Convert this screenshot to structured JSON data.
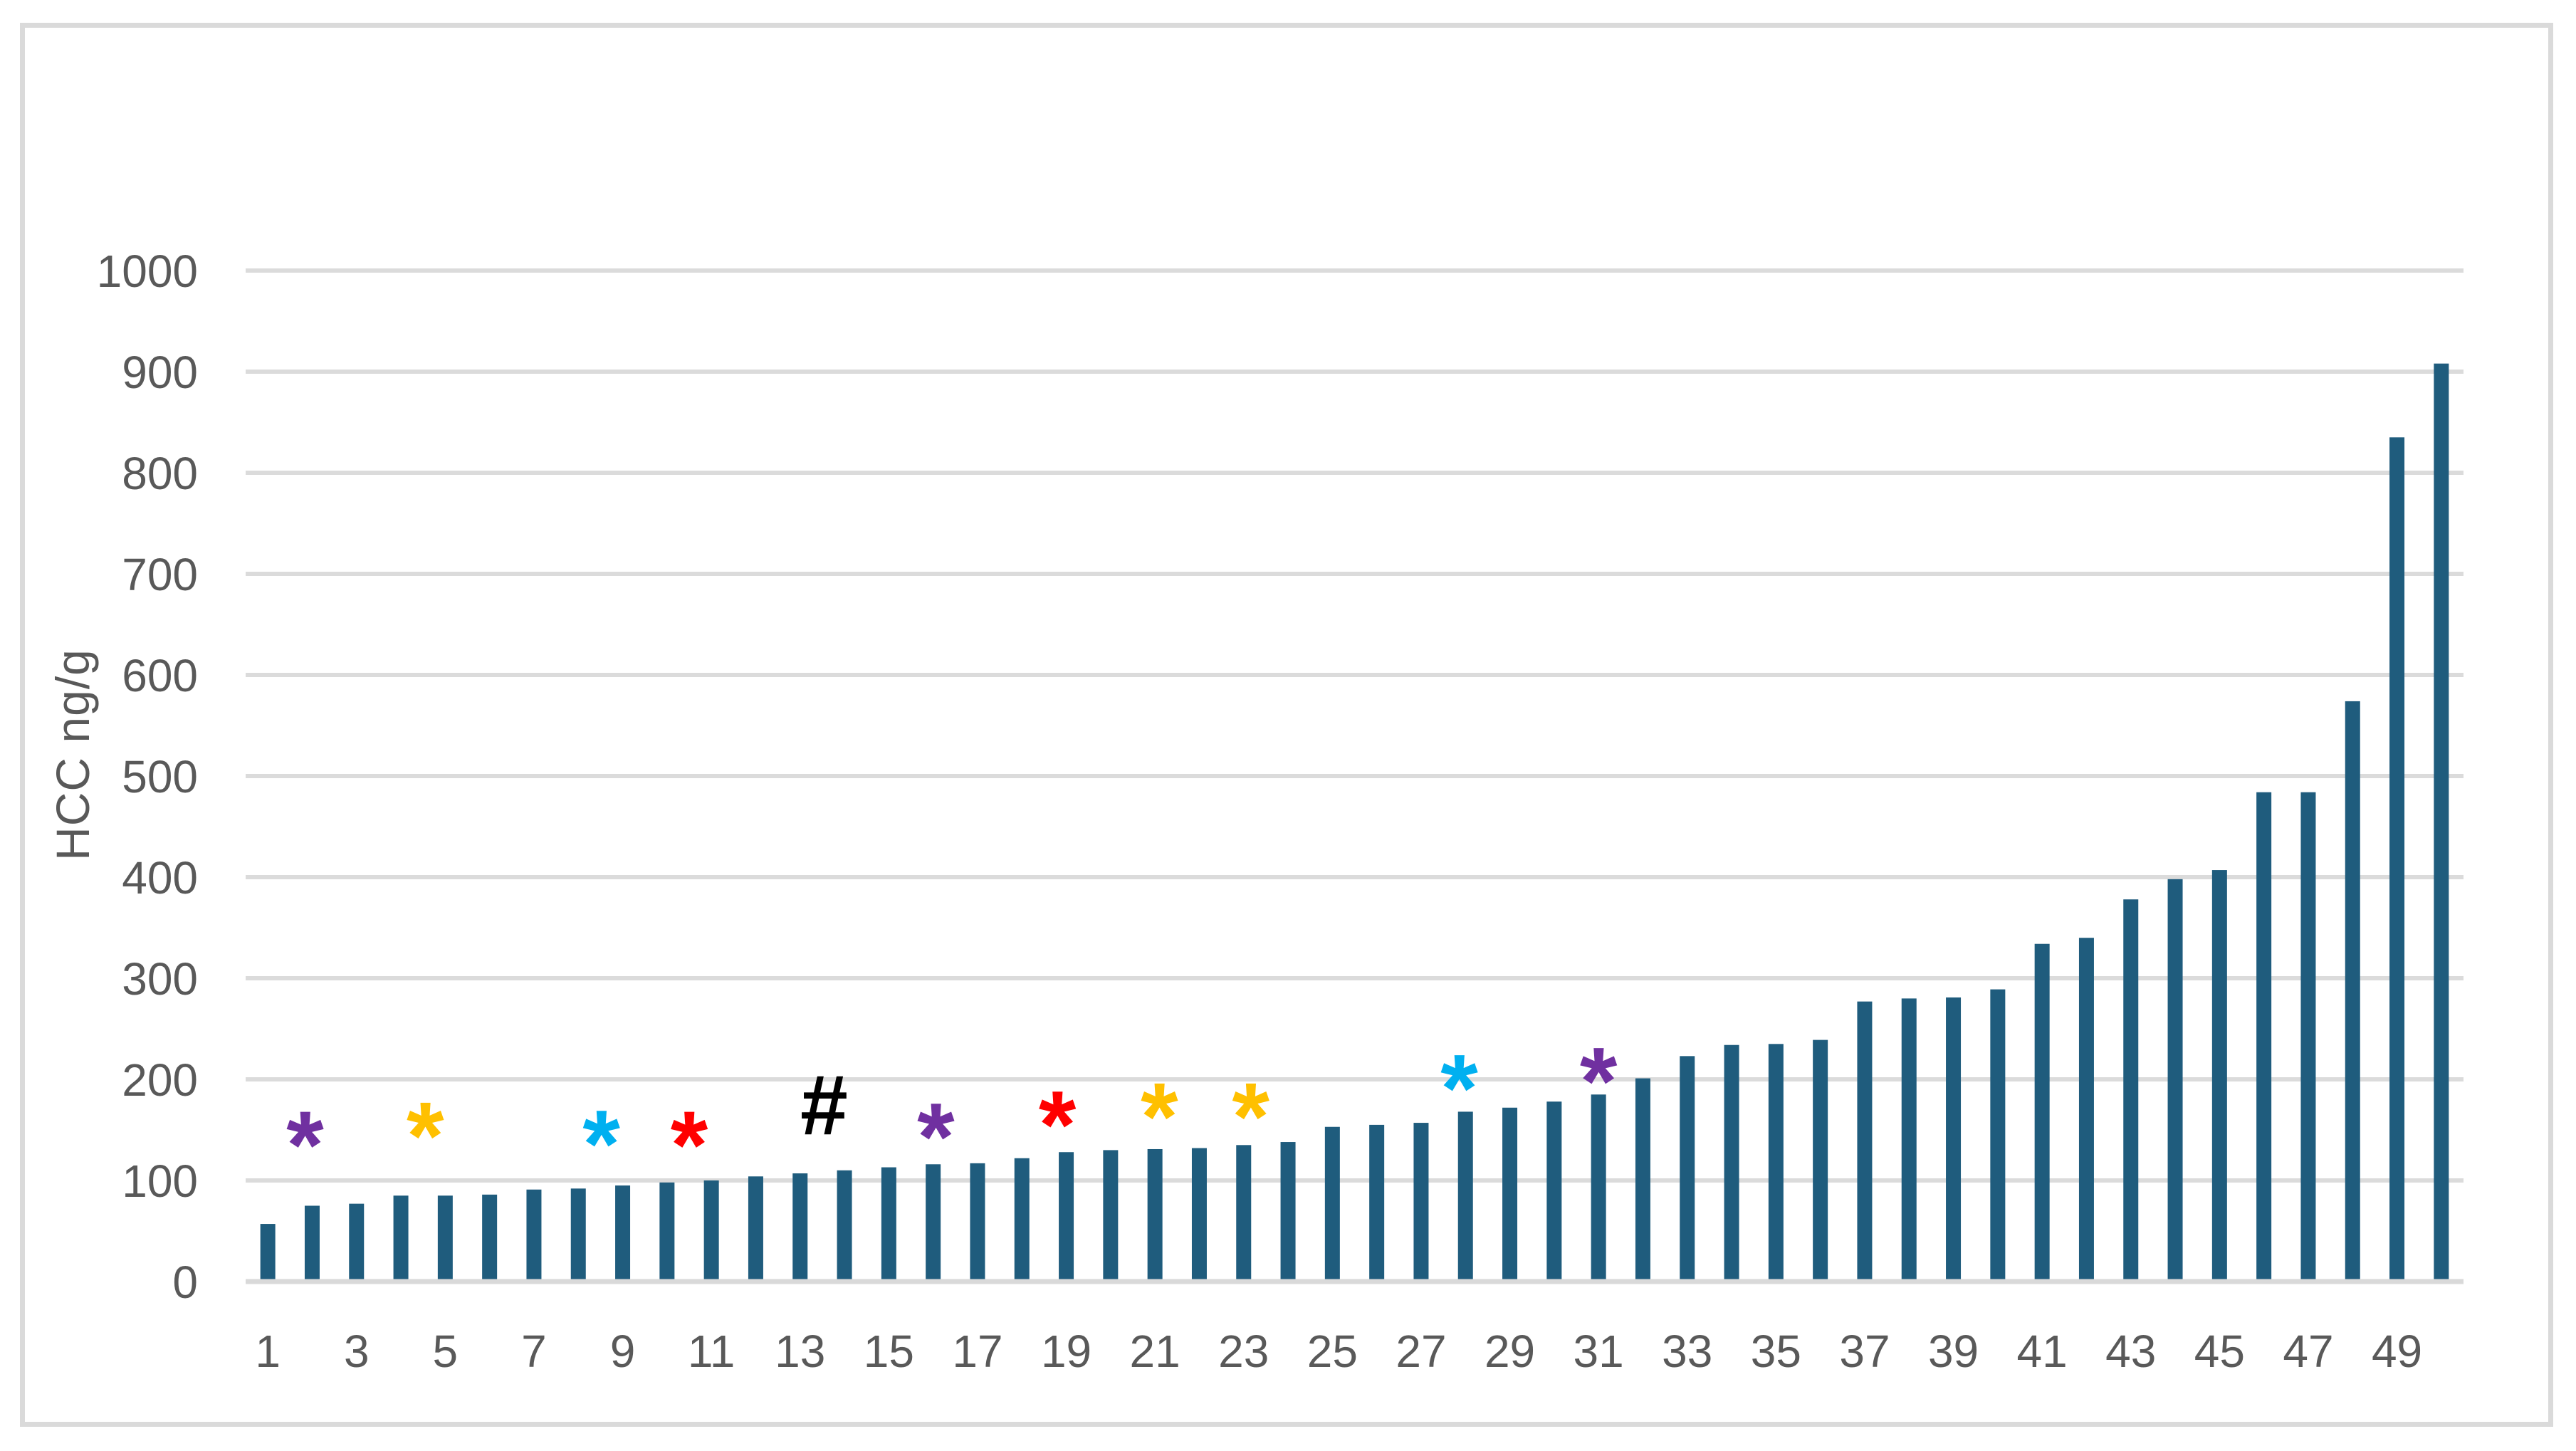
{
  "figure": {
    "background": "#ffffff",
    "border_color": "#dadada"
  },
  "chart_data": {
    "type": "bar",
    "title": "",
    "xlabel": "",
    "ylabel": "HCC ng/g",
    "ylim": [
      0,
      1000
    ],
    "grid": true,
    "legend": false,
    "y_ticks": [
      0,
      100,
      200,
      300,
      400,
      500,
      600,
      700,
      800,
      900,
      1000
    ],
    "x_tick_labels": [
      "1",
      "3",
      "5",
      "7",
      "9",
      "11",
      "13",
      "15",
      "17",
      "19",
      "21",
      "23",
      "25",
      "27",
      "29",
      "31",
      "33",
      "35",
      "37",
      "39",
      "41",
      "43",
      "45",
      "47",
      "49"
    ],
    "categories": [
      1,
      2,
      3,
      4,
      5,
      6,
      7,
      8,
      9,
      10,
      11,
      12,
      13,
      14,
      15,
      16,
      17,
      18,
      19,
      20,
      21,
      22,
      23,
      24,
      25,
      26,
      27,
      28,
      29,
      30,
      31,
      32,
      33,
      34,
      35,
      36,
      37,
      38,
      39,
      40,
      41,
      42,
      43,
      44,
      45,
      46,
      47,
      48,
      49,
      50
    ],
    "values": [
      57,
      75,
      77,
      85,
      85,
      86,
      91,
      92,
      95,
      98,
      100,
      104,
      107,
      110,
      113,
      116,
      117,
      122,
      128,
      130,
      131,
      132,
      135,
      138,
      153,
      155,
      157,
      168,
      172,
      178,
      185,
      201,
      223,
      234,
      235,
      239,
      277,
      280,
      281,
      289,
      334,
      340,
      378,
      398,
      407,
      484,
      484,
      574,
      835,
      908
    ],
    "bar_color": "#1F5C7D",
    "gridline_color": "#DBDBDB",
    "axis_line_color": "#D9D9D9",
    "tick_label_color": "#595959",
    "annotations": [
      {
        "near_bar": 2,
        "slot": 1.84,
        "value": 150,
        "symbol": "*",
        "color": "#7030A0"
      },
      {
        "near_bar": 5,
        "slot": 4.55,
        "value": 159,
        "symbol": "*",
        "color": "#FFC000"
      },
      {
        "near_bar": 9,
        "slot": 8.52,
        "value": 151,
        "symbol": "*",
        "color": "#00B0F0"
      },
      {
        "near_bar": 11,
        "slot": 10.5,
        "value": 150,
        "symbol": "*",
        "color": "#FF0000"
      },
      {
        "near_bar": 14,
        "slot": 13.54,
        "value": 175,
        "symbol": "#",
        "color": "#000000"
      },
      {
        "near_bar": 16,
        "slot": 16.06,
        "value": 158,
        "symbol": "*",
        "color": "#7030A0"
      },
      {
        "near_bar": 19,
        "slot": 18.8,
        "value": 170,
        "symbol": "*",
        "color": "#FF0000"
      },
      {
        "near_bar": 21,
        "slot": 21.1,
        "value": 178,
        "symbol": "*",
        "color": "#FFC000"
      },
      {
        "near_bar": 23,
        "slot": 23.16,
        "value": 178,
        "symbol": "*",
        "color": "#FFC000"
      },
      {
        "near_bar": 28,
        "slot": 27.86,
        "value": 206,
        "symbol": "*",
        "color": "#00B0F0"
      },
      {
        "near_bar": 31,
        "slot": 31.0,
        "value": 213,
        "symbol": "*",
        "color": "#7030A0"
      }
    ]
  }
}
